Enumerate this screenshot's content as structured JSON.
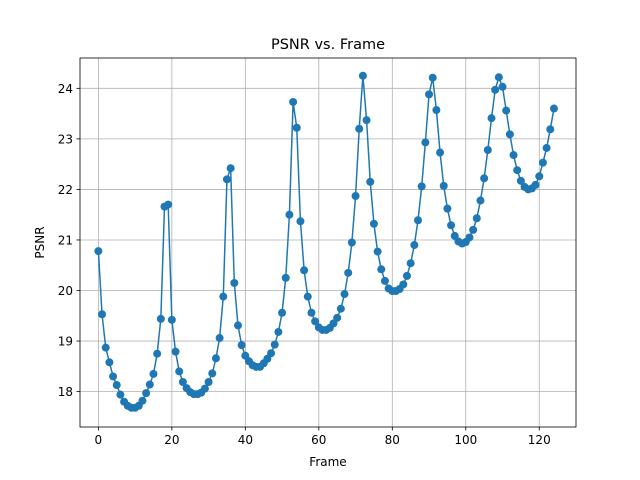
{
  "chart_data": {
    "type": "line",
    "title": "PSNR vs. Frame",
    "xlabel": "Frame",
    "ylabel": "PSNR",
    "xlim": [
      -5,
      130
    ],
    "ylim": [
      17.3,
      24.6
    ],
    "grid": true,
    "markers": true,
    "line_color": "#1f77b4",
    "x_ticks": [
      0,
      20,
      40,
      60,
      80,
      100,
      120
    ],
    "y_ticks": [
      18,
      19,
      20,
      21,
      22,
      23,
      24
    ],
    "series": [
      {
        "x": [
          0,
          1,
          2,
          3,
          4,
          5,
          6,
          7,
          8,
          9,
          10,
          11,
          12,
          13,
          14,
          15,
          16,
          17,
          18,
          19,
          20,
          21,
          22,
          23,
          24,
          25,
          26,
          27,
          28,
          29,
          30,
          31,
          32,
          33,
          34,
          35,
          36,
          37,
          38,
          39,
          40,
          41,
          42,
          43,
          44,
          45,
          46,
          47,
          48,
          49,
          50,
          51,
          52,
          53,
          54,
          55,
          56,
          57,
          58,
          59,
          60,
          61,
          62,
          63,
          64,
          65,
          66,
          67,
          68,
          69,
          70,
          71,
          72,
          73,
          74,
          75,
          76,
          77,
          78,
          79,
          80,
          81,
          82,
          83,
          84,
          85,
          86,
          87,
          88,
          89,
          90,
          91,
          92,
          93,
          94,
          95,
          96,
          97,
          98,
          99,
          100,
          101,
          102,
          103,
          104,
          105,
          106,
          107,
          108,
          109,
          110,
          111,
          112,
          113,
          114,
          115,
          116,
          117,
          118,
          119,
          120,
          121,
          122,
          123,
          124
        ],
        "y": [
          20.78,
          19.53,
          18.87,
          18.58,
          18.3,
          18.13,
          17.94,
          17.8,
          17.72,
          17.68,
          17.68,
          17.72,
          17.82,
          17.97,
          18.14,
          18.35,
          18.75,
          19.44,
          21.66,
          21.7,
          19.42,
          18.79,
          18.4,
          18.19,
          18.07,
          17.99,
          17.95,
          17.95,
          17.98,
          18.06,
          18.19,
          18.36,
          18.66,
          19.06,
          19.88,
          22.2,
          22.42,
          20.15,
          19.31,
          18.92,
          18.71,
          18.6,
          18.52,
          18.49,
          18.49,
          18.56,
          18.65,
          18.76,
          18.93,
          19.18,
          19.56,
          20.25,
          21.5,
          23.73,
          23.22,
          21.37,
          20.4,
          19.88,
          19.56,
          19.39,
          19.27,
          19.22,
          19.22,
          19.26,
          19.35,
          19.46,
          19.64,
          19.93,
          20.35,
          20.95,
          21.87,
          23.2,
          24.25,
          23.37,
          22.15,
          21.32,
          20.77,
          20.42,
          20.19,
          20.04,
          19.99,
          19.99,
          20.03,
          20.12,
          20.29,
          20.54,
          20.9,
          21.39,
          22.06,
          22.93,
          23.88,
          24.21,
          23.57,
          22.73,
          22.07,
          21.62,
          21.29,
          21.08,
          20.97,
          20.93,
          20.96,
          21.05,
          21.2,
          21.43,
          21.78,
          22.22,
          22.78,
          23.41,
          23.97,
          24.22,
          24.03,
          23.56,
          23.09,
          22.68,
          22.38,
          22.17,
          22.05,
          22.0,
          22.02,
          22.09,
          22.26,
          22.53,
          22.82,
          23.19,
          23.6
        ]
      }
    ]
  }
}
